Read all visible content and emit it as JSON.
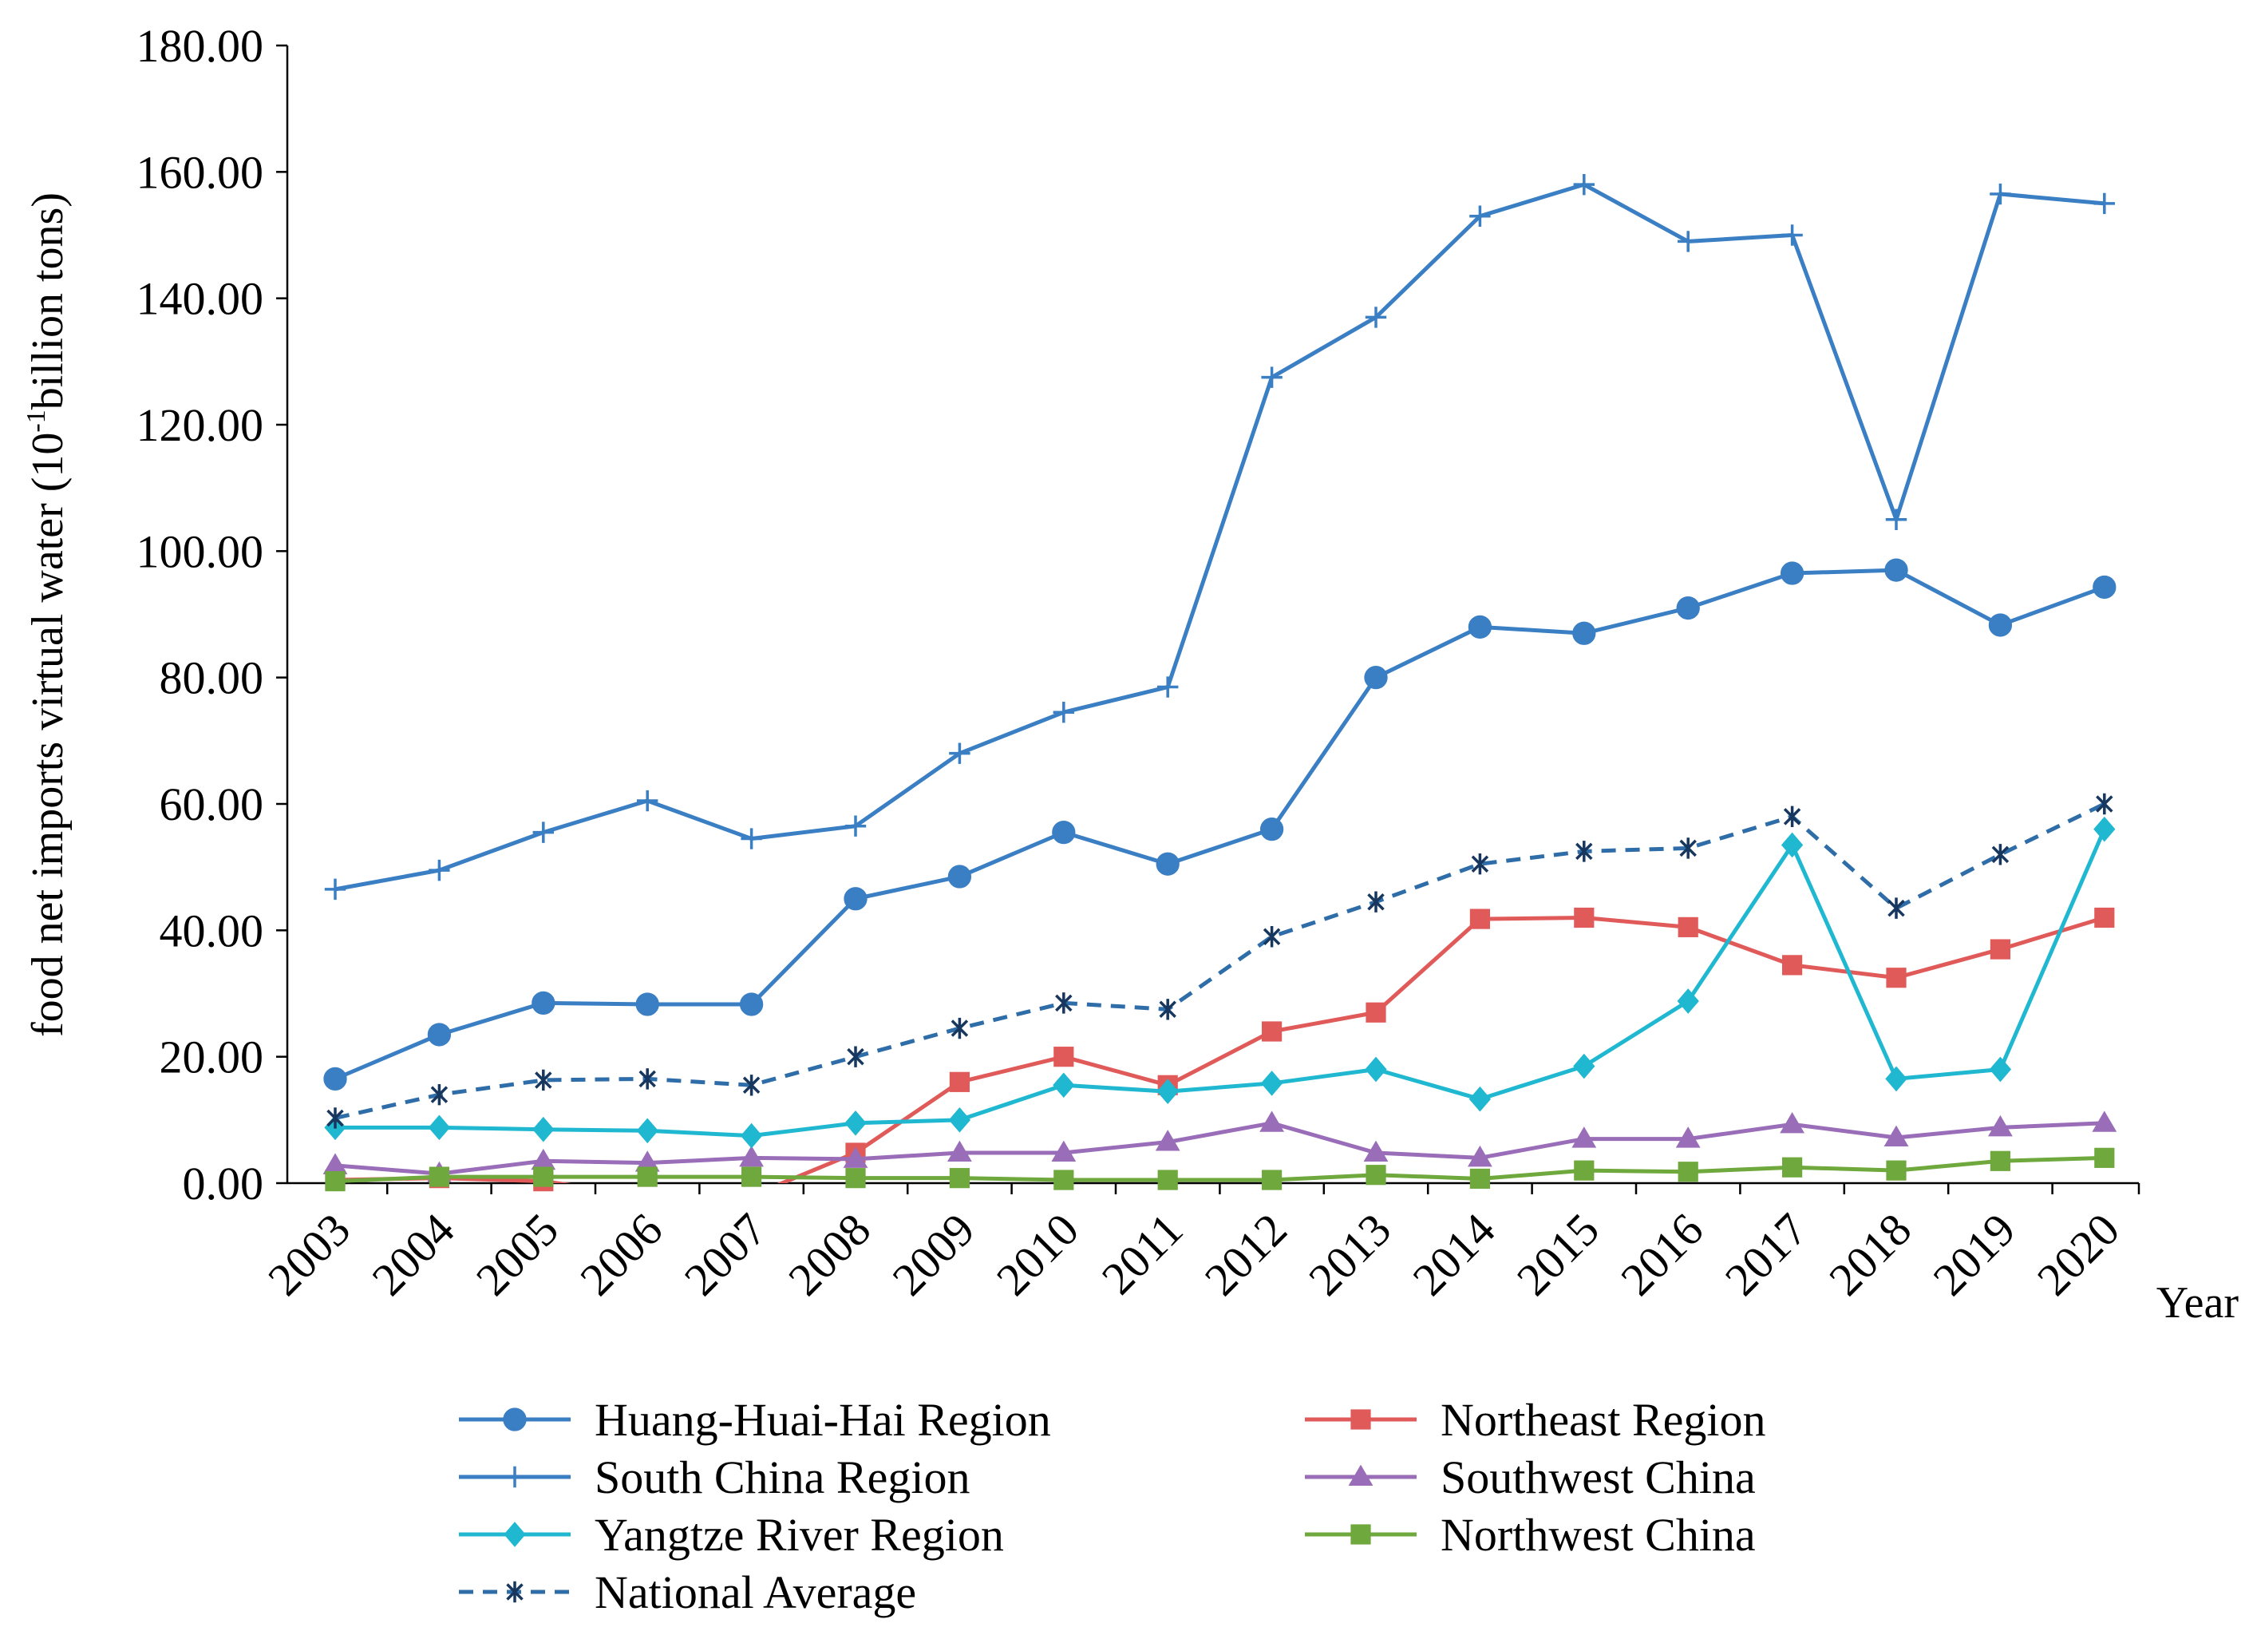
{
  "chart_data": {
    "type": "line",
    "title": "",
    "xlabel": "Year",
    "ylabel_parts": [
      "food net imports virtual water (10",
      "-1",
      "billion tons)"
    ],
    "ylim": [
      0,
      180
    ],
    "ytick_step": 20,
    "ytick_labels": [
      "0.00",
      "20.00",
      "40.00",
      "60.00",
      "80.00",
      "100.00",
      "120.00",
      "140.00",
      "160.00",
      "180.00"
    ],
    "categories": [
      "2003",
      "2004",
      "2005",
      "2006",
      "2007",
      "2008",
      "2009",
      "2010",
      "2011",
      "2012",
      "2013",
      "2014",
      "2015",
      "2016",
      "2017",
      "2018",
      "2019",
      "2020"
    ],
    "legend_position": "bottom",
    "series": [
      {
        "name": "Huang-Huai-Hai Region",
        "color": "#3A7EC3",
        "marker": "circle",
        "dash": false,
        "values": [
          16.5,
          23.5,
          28.5,
          28.3,
          28.3,
          45.0,
          48.5,
          55.5,
          50.5,
          56.0,
          80.0,
          88.0,
          87.0,
          91.0,
          96.5,
          97.0,
          88.3,
          94.3
        ]
      },
      {
        "name": "Northeast Region",
        "color": "#E15A5A",
        "marker": "square",
        "dash": false,
        "values": [
          0.5,
          0.8,
          0.3,
          -2.0,
          -2.0,
          4.8,
          16.0,
          20.0,
          15.5,
          24.0,
          27.0,
          41.8,
          42.0,
          40.5,
          34.5,
          32.5,
          37.0,
          42.0
        ]
      },
      {
        "name": "South China Region",
        "color": "#3A7EC3",
        "marker": "plus",
        "dash": false,
        "values": [
          46.5,
          49.5,
          55.5,
          60.5,
          54.5,
          56.5,
          68.0,
          74.5,
          78.5,
          127.5,
          137.0,
          153.0,
          158.0,
          149.0,
          150.0,
          105.0,
          156.5,
          155.0
        ]
      },
      {
        "name": "Southwest China",
        "color": "#9A6DB8",
        "marker": "triangle",
        "dash": false,
        "values": [
          2.8,
          1.5,
          3.5,
          3.2,
          4.0,
          3.8,
          4.8,
          4.8,
          6.5,
          9.5,
          4.8,
          4.0,
          7.0,
          7.0,
          9.3,
          7.2,
          8.8,
          9.5
        ]
      },
      {
        "name": "Yangtze River Region",
        "color": "#20B8D0",
        "marker": "diamond",
        "dash": false,
        "values": [
          8.8,
          8.8,
          8.5,
          8.3,
          7.5,
          9.5,
          10.0,
          15.5,
          14.5,
          15.8,
          18.0,
          13.3,
          18.5,
          28.8,
          53.5,
          16.5,
          18.0,
          56.0
        ]
      },
      {
        "name": "Northwest China",
        "color": "#6FA83C",
        "marker": "square",
        "dash": false,
        "values": [
          0.3,
          1.0,
          1.0,
          1.0,
          1.0,
          0.8,
          0.8,
          0.5,
          0.5,
          0.5,
          1.3,
          0.7,
          2.0,
          1.8,
          2.5,
          2.0,
          3.5,
          4.0
        ]
      },
      {
        "name": "National Average",
        "color": "#2E6DA8",
        "marker": "asterisk",
        "dash": true,
        "values": [
          10.3,
          14.0,
          16.3,
          16.5,
          15.5,
          20.0,
          24.5,
          28.5,
          27.5,
          39.0,
          44.5,
          50.5,
          52.5,
          53.0,
          58.0,
          43.5,
          52.0,
          60.0
        ]
      }
    ]
  }
}
